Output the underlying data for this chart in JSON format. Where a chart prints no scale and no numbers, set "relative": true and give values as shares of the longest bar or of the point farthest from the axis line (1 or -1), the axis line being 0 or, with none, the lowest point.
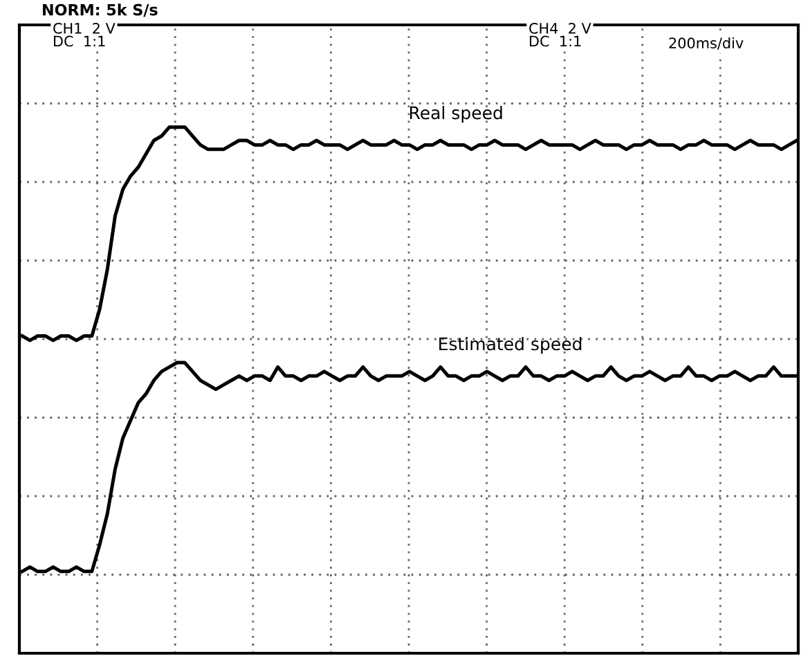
{
  "chart_data": {
    "type": "line",
    "relative": true,
    "grid": true,
    "legend": false,
    "marker": "none",
    "line_style": "solid",
    "annotations": [
      "NORM: 5k S/s",
      "CH1  2 V\nDC  1:1",
      "CH4  2 V\nDC  1:1",
      "200ms/div"
    ],
    "categories": [
      null,
      null,
      null,
      null,
      null,
      null,
      null,
      null,
      null,
      null,
      null,
      null,
      null,
      null,
      null,
      null,
      null,
      null,
      null,
      null,
      null,
      null,
      null,
      null,
      null,
      null,
      null,
      null,
      null,
      null,
      null,
      null,
      null,
      null,
      null,
      null,
      null,
      null,
      null,
      null,
      null,
      null,
      null,
      null,
      null,
      null,
      null,
      null,
      null,
      null,
      null,
      null,
      null,
      null,
      null,
      null,
      null,
      null,
      null,
      null,
      null,
      null,
      null,
      null,
      null,
      null,
      null,
      null,
      null,
      null,
      null,
      null,
      null,
      null,
      null,
      null,
      null,
      null,
      null,
      null,
      null,
      null,
      null,
      null,
      null,
      null,
      null,
      null,
      null,
      null,
      null,
      null,
      null,
      null,
      null,
      null,
      null,
      null,
      null,
      null,
      null
    ],
    "series": [
      {
        "name": "Real speed",
        "color": "#000000",
        "values": [
          0.53,
          0.52,
          0.53,
          0.53,
          0.52,
          0.53,
          0.53,
          0.52,
          0.53,
          0.53,
          0.59,
          0.68,
          0.8,
          0.86,
          0.89,
          0.91,
          0.94,
          0.97,
          0.98,
          1.0,
          1.0,
          1.0,
          0.98,
          0.96,
          0.95,
          0.95,
          0.95,
          0.96,
          0.97,
          0.97,
          0.96,
          0.96,
          0.97,
          0.96,
          0.96,
          0.95,
          0.96,
          0.96,
          0.97,
          0.96,
          0.96,
          0.96,
          0.95,
          0.96,
          0.97,
          0.96,
          0.96,
          0.96,
          0.97,
          0.96,
          0.96,
          0.95,
          0.96,
          0.96,
          0.97,
          0.96,
          0.96,
          0.96,
          0.95,
          0.96,
          0.96,
          0.97,
          0.96,
          0.96,
          0.96,
          0.95,
          0.96,
          0.97,
          0.96,
          0.96,
          0.96,
          0.96,
          0.95,
          0.96,
          0.97,
          0.96,
          0.96,
          0.96,
          0.95,
          0.96,
          0.96,
          0.97,
          0.96,
          0.96,
          0.96,
          0.95,
          0.96,
          0.96,
          0.97,
          0.96,
          0.96,
          0.96,
          0.95,
          0.96,
          0.97,
          0.96,
          0.96,
          0.96,
          0.95,
          0.96,
          0.97
        ]
      },
      {
        "name": "Estimated speed",
        "color": "#000000",
        "values": [
          0.0,
          0.01,
          0.0,
          0.0,
          0.01,
          0.0,
          0.0,
          0.01,
          0.0,
          0.0,
          0.06,
          0.13,
          0.23,
          0.3,
          0.34,
          0.38,
          0.4,
          0.43,
          0.45,
          0.46,
          0.47,
          0.47,
          0.45,
          0.43,
          0.42,
          0.41,
          0.42,
          0.43,
          0.44,
          0.43,
          0.44,
          0.44,
          0.43,
          0.46,
          0.44,
          0.44,
          0.43,
          0.44,
          0.44,
          0.45,
          0.44,
          0.43,
          0.44,
          0.44,
          0.46,
          0.44,
          0.43,
          0.44,
          0.44,
          0.44,
          0.45,
          0.44,
          0.43,
          0.44,
          0.46,
          0.44,
          0.44,
          0.43,
          0.44,
          0.44,
          0.45,
          0.44,
          0.43,
          0.44,
          0.44,
          0.46,
          0.44,
          0.44,
          0.43,
          0.44,
          0.44,
          0.45,
          0.44,
          0.43,
          0.44,
          0.44,
          0.46,
          0.44,
          0.43,
          0.44,
          0.44,
          0.45,
          0.44,
          0.43,
          0.44,
          0.44,
          0.46,
          0.44,
          0.44,
          0.43,
          0.44,
          0.44,
          0.45,
          0.44,
          0.43,
          0.44,
          0.44,
          0.46,
          0.44,
          0.44,
          0.44
        ]
      }
    ]
  }
}
